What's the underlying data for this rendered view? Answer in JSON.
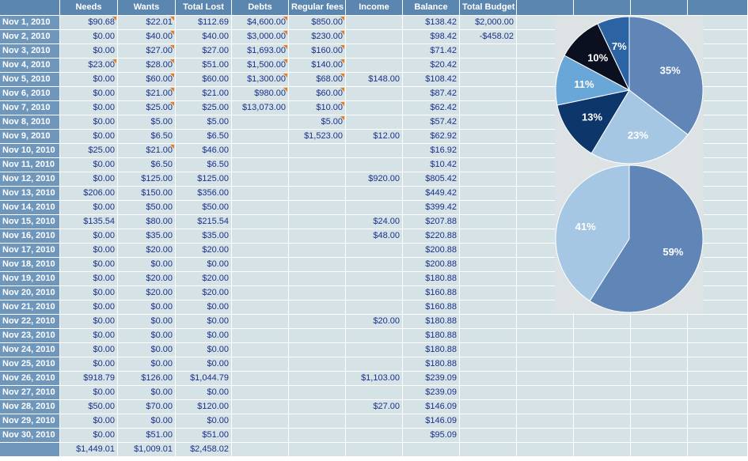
{
  "columns": [
    "",
    "Needs",
    "Wants",
    "Total Lost",
    "Debts",
    "Regular fees",
    "Income",
    "Balance",
    "Total Budget",
    "",
    "",
    "",
    ""
  ],
  "rows": [
    {
      "date": "Nov 1, 2010",
      "needs": "$90.68",
      "wants": "$22.01",
      "total": "$112.69",
      "debts": "$4,600.00",
      "fees": "$850.00",
      "income": "",
      "balance": "$138.42",
      "budget": "$2,000.00",
      "flags": [
        "needs",
        "wants",
        "debts",
        "fees"
      ]
    },
    {
      "date": "Nov 2, 2010",
      "needs": "$0.00",
      "wants": "$40.00",
      "total": "$40.00",
      "debts": "$3,000.00",
      "fees": "$230.00",
      "income": "",
      "balance": "$98.42",
      "budget": "-$458.02",
      "flags": [
        "wants",
        "debts",
        "fees"
      ]
    },
    {
      "date": "Nov 3, 2010",
      "needs": "$0.00",
      "wants": "$27.00",
      "total": "$27.00",
      "debts": "$1,693.00",
      "fees": "$160.00",
      "income": "",
      "balance": "$71.42",
      "budget": "",
      "flags": [
        "wants",
        "debts",
        "fees"
      ]
    },
    {
      "date": "Nov 4, 2010",
      "needs": "$23.00",
      "wants": "$28.00",
      "total": "$51.00",
      "debts": "$1,500.00",
      "fees": "$140.00",
      "income": "",
      "balance": "$20.42",
      "budget": "",
      "flags": [
        "needs",
        "wants",
        "debts",
        "fees"
      ]
    },
    {
      "date": "Nov 5, 2010",
      "needs": "$0.00",
      "wants": "$60.00",
      "total": "$60.00",
      "debts": "$1,300.00",
      "fees": "$68.00",
      "income": "$148.00",
      "balance": "$108.42",
      "budget": "",
      "flags": [
        "wants",
        "debts",
        "fees"
      ]
    },
    {
      "date": "Nov 6, 2010",
      "needs": "$0.00",
      "wants": "$21.00",
      "total": "$21.00",
      "debts": "$980.00",
      "fees": "$60.00",
      "income": "",
      "balance": "$87.42",
      "budget": "",
      "flags": [
        "wants",
        "debts",
        "fees"
      ]
    },
    {
      "date": "Nov 7, 2010",
      "needs": "$0.00",
      "wants": "$25.00",
      "total": "$25.00",
      "debts": "$13,073.00",
      "fees": "$10.00",
      "income": "",
      "balance": "$62.42",
      "budget": "",
      "flags": [
        "wants",
        "fees"
      ]
    },
    {
      "date": "Nov 8, 2010",
      "needs": "$0.00",
      "wants": "$5.00",
      "total": "$5.00",
      "debts": "",
      "fees": "$5.00",
      "income": "",
      "balance": "$57.42",
      "budget": "",
      "flags": [
        "fees"
      ]
    },
    {
      "date": "Nov 9, 2010",
      "needs": "$0.00",
      "wants": "$6.50",
      "total": "$6.50",
      "debts": "",
      "fees": "$1,523.00",
      "income": "$12.00",
      "balance": "$62.92",
      "budget": "",
      "flags": []
    },
    {
      "date": "Nov 10, 2010",
      "needs": "$25.00",
      "wants": "$21.00",
      "total": "$46.00",
      "debts": "",
      "fees": "",
      "income": "",
      "balance": "$16.92",
      "budget": "",
      "flags": [
        "wants"
      ]
    },
    {
      "date": "Nov 11, 2010",
      "needs": "$0.00",
      "wants": "$6.50",
      "total": "$6.50",
      "debts": "",
      "fees": "",
      "income": "",
      "balance": "$10.42",
      "budget": "",
      "flags": []
    },
    {
      "date": "Nov 12, 2010",
      "needs": "$0.00",
      "wants": "$125.00",
      "total": "$125.00",
      "debts": "",
      "fees": "",
      "income": "$920.00",
      "balance": "$805.42",
      "budget": "",
      "flags": []
    },
    {
      "date": "Nov 13, 2010",
      "needs": "$206.00",
      "wants": "$150.00",
      "total": "$356.00",
      "debts": "",
      "fees": "",
      "income": "",
      "balance": "$449.42",
      "budget": "",
      "flags": []
    },
    {
      "date": "Nov 14, 2010",
      "needs": "$0.00",
      "wants": "$50.00",
      "total": "$50.00",
      "debts": "",
      "fees": "",
      "income": "",
      "balance": "$399.42",
      "budget": "",
      "flags": []
    },
    {
      "date": "Nov 15, 2010",
      "needs": "$135.54",
      "wants": "$80.00",
      "total": "$215.54",
      "debts": "",
      "fees": "",
      "income": "$24.00",
      "balance": "$207.88",
      "budget": "",
      "flags": []
    },
    {
      "date": "Nov 16, 2010",
      "needs": "$0.00",
      "wants": "$35.00",
      "total": "$35.00",
      "debts": "",
      "fees": "",
      "income": "$48.00",
      "balance": "$220.88",
      "budget": "",
      "flags": []
    },
    {
      "date": "Nov 17, 2010",
      "needs": "$0.00",
      "wants": "$20.00",
      "total": "$20.00",
      "debts": "",
      "fees": "",
      "income": "",
      "balance": "$200.88",
      "budget": "",
      "flags": []
    },
    {
      "date": "Nov 18, 2010",
      "needs": "$0.00",
      "wants": "$0.00",
      "total": "$0.00",
      "debts": "",
      "fees": "",
      "income": "",
      "balance": "$200.88",
      "budget": "",
      "flags": []
    },
    {
      "date": "Nov 19, 2010",
      "needs": "$0.00",
      "wants": "$20.00",
      "total": "$20.00",
      "debts": "",
      "fees": "",
      "income": "",
      "balance": "$180.88",
      "budget": "",
      "flags": []
    },
    {
      "date": "Nov 20, 2010",
      "needs": "$0.00",
      "wants": "$20.00",
      "total": "$20.00",
      "debts": "",
      "fees": "",
      "income": "",
      "balance": "$160.88",
      "budget": "",
      "flags": []
    },
    {
      "date": "Nov 21, 2010",
      "needs": "$0.00",
      "wants": "$0.00",
      "total": "$0.00",
      "debts": "",
      "fees": "",
      "income": "",
      "balance": "$160.88",
      "budget": "",
      "flags": []
    },
    {
      "date": "Nov 22, 2010",
      "needs": "$0.00",
      "wants": "$0.00",
      "total": "$0.00",
      "debts": "",
      "fees": "",
      "income": "$20.00",
      "balance": "$180.88",
      "budget": "",
      "flags": []
    },
    {
      "date": "Nov 23, 2010",
      "needs": "$0.00",
      "wants": "$0.00",
      "total": "$0.00",
      "debts": "",
      "fees": "",
      "income": "",
      "balance": "$180.88",
      "budget": "",
      "flags": []
    },
    {
      "date": "Nov 24, 2010",
      "needs": "$0.00",
      "wants": "$0.00",
      "total": "$0.00",
      "debts": "",
      "fees": "",
      "income": "",
      "balance": "$180.88",
      "budget": "",
      "flags": []
    },
    {
      "date": "Nov 25, 2010",
      "needs": "$0.00",
      "wants": "$0.00",
      "total": "$0.00",
      "debts": "",
      "fees": "",
      "income": "",
      "balance": "$180.88",
      "budget": "",
      "flags": []
    },
    {
      "date": "Nov 26, 2010",
      "needs": "$918.79",
      "wants": "$126.00",
      "total": "$1,044.79",
      "debts": "",
      "fees": "",
      "income": "$1,103.00",
      "balance": "$239.09",
      "budget": "",
      "flags": []
    },
    {
      "date": "Nov 27, 2010",
      "needs": "$0.00",
      "wants": "$0.00",
      "total": "$0.00",
      "debts": "",
      "fees": "",
      "income": "",
      "balance": "$239.09",
      "budget": "",
      "flags": []
    },
    {
      "date": "Nov 28, 2010",
      "needs": "$50.00",
      "wants": "$70.00",
      "total": "$120.00",
      "debts": "",
      "fees": "",
      "income": "$27.00",
      "balance": "$146.09",
      "budget": "",
      "flags": []
    },
    {
      "date": "Nov 29, 2010",
      "needs": "$0.00",
      "wants": "$0.00",
      "total": "$0.00",
      "debts": "",
      "fees": "",
      "income": "",
      "balance": "$146.09",
      "budget": "",
      "flags": []
    },
    {
      "date": "Nov 30, 2010",
      "needs": "$0.00",
      "wants": "$51.00",
      "total": "$51.00",
      "debts": "",
      "fees": "",
      "income": "",
      "balance": "$95.09",
      "budget": "",
      "flags": []
    }
  ],
  "totals": {
    "date": "",
    "needs": "$1,449.01",
    "wants": "$1,009.01",
    "total": "$2,458.02",
    "debts": "",
    "fees": "",
    "income": "",
    "balance": "",
    "budget": ""
  },
  "colors": {
    "flag": "#f07a14",
    "text": "#1b2f8a",
    "header": "#5a86b0"
  },
  "chart_data": [
    {
      "type": "pie",
      "labels": [
        "35%",
        "23%",
        "13%",
        "11%",
        "10%",
        "7%"
      ],
      "values": [
        35,
        23,
        13,
        11,
        10,
        7
      ],
      "colors": [
        "#5f86b7",
        "#a6c7e3",
        "#0d376b",
        "#6aa7d9",
        "#0b1020",
        "#2c63a3"
      ],
      "label_colors": [
        "#ffffff",
        "#ffffff",
        "#ffffff",
        "#ffffff",
        "#ffffff",
        "#ffffff"
      ]
    },
    {
      "type": "pie",
      "labels": [
        "59%",
        "41%"
      ],
      "values": [
        59,
        41
      ],
      "colors": [
        "#5f86b7",
        "#a6c7e3"
      ],
      "label_colors": [
        "#ffffff",
        "#ffffff"
      ]
    }
  ]
}
